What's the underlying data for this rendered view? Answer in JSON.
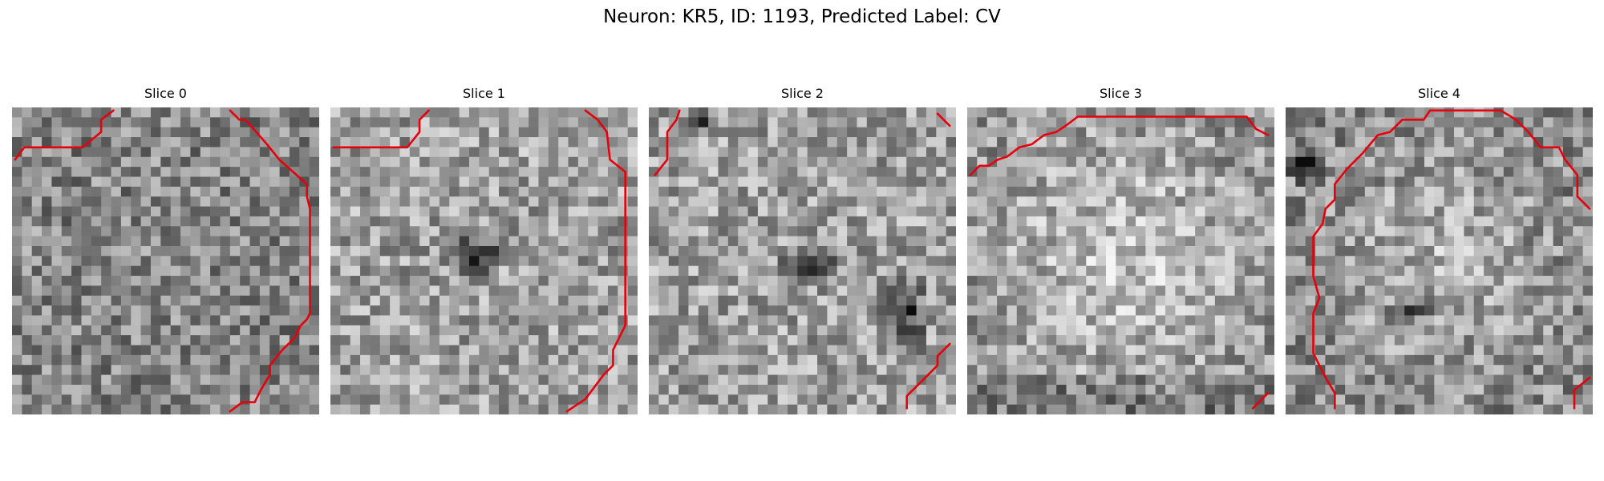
{
  "figure": {
    "title": "Neuron: KR5, ID: 1193, Predicted Label: CV",
    "contour_color": "#e8000b"
  },
  "slices": [
    {
      "title": "Slice 0",
      "dark_blobs": [],
      "contours": [
        [
          [
            0.01,
            0.17
          ],
          [
            0.04,
            0.13
          ],
          [
            0.23,
            0.13
          ],
          [
            0.29,
            0.08
          ],
          [
            0.29,
            0.04
          ],
          [
            0.33,
            0.01
          ]
        ],
        [
          [
            0.71,
            0.01
          ],
          [
            0.74,
            0.04
          ],
          [
            0.76,
            0.04
          ],
          [
            0.83,
            0.12
          ],
          [
            0.87,
            0.17
          ],
          [
            0.96,
            0.25
          ],
          [
            0.96,
            0.29
          ],
          [
            0.97,
            0.33
          ],
          [
            0.97,
            0.67
          ],
          [
            0.96,
            0.69
          ],
          [
            0.94,
            0.71
          ],
          [
            0.92,
            0.75
          ],
          [
            0.88,
            0.79
          ],
          [
            0.84,
            0.84
          ],
          [
            0.84,
            0.87
          ],
          [
            0.81,
            0.92
          ],
          [
            0.79,
            0.96
          ],
          [
            0.75,
            0.96
          ],
          [
            0.71,
            0.99
          ]
        ]
      ]
    },
    {
      "title": "Slice 1",
      "dark_blobs": [
        [
          0.47,
          0.48,
          0.09,
          0.07
        ]
      ],
      "contours": [
        [
          [
            0.01,
            0.13
          ],
          [
            0.25,
            0.13
          ],
          [
            0.29,
            0.08
          ],
          [
            0.29,
            0.04
          ],
          [
            0.32,
            0.01
          ]
        ],
        [
          [
            0.83,
            0.01
          ],
          [
            0.87,
            0.04
          ],
          [
            0.9,
            0.08
          ],
          [
            0.91,
            0.17
          ],
          [
            0.96,
            0.21
          ],
          [
            0.96,
            0.71
          ],
          [
            0.94,
            0.75
          ],
          [
            0.92,
            0.79
          ],
          [
            0.92,
            0.84
          ],
          [
            0.89,
            0.87
          ],
          [
            0.86,
            0.91
          ],
          [
            0.83,
            0.95
          ],
          [
            0.77,
            0.99
          ]
        ]
      ]
    },
    {
      "title": "Slice 2",
      "dark_blobs": [
        [
          0.52,
          0.52,
          0.09,
          0.05
        ],
        [
          0.83,
          0.68,
          0.07,
          0.12
        ],
        [
          0.15,
          0.05,
          0.05,
          0.05
        ]
      ],
      "contours": [
        [
          [
            0.02,
            0.22
          ],
          [
            0.06,
            0.17
          ],
          [
            0.06,
            0.08
          ],
          [
            0.09,
            0.04
          ],
          [
            0.1,
            0.01
          ]
        ],
        [
          [
            0.94,
            0.02
          ],
          [
            0.98,
            0.06
          ]
        ],
        [
          [
            0.84,
            0.98
          ],
          [
            0.84,
            0.94
          ],
          [
            0.89,
            0.89
          ],
          [
            0.94,
            0.84
          ],
          [
            0.94,
            0.81
          ],
          [
            0.98,
            0.77
          ]
        ]
      ]
    },
    {
      "title": "Slice 3",
      "dark_blobs": [],
      "contours": [
        [
          [
            0.01,
            0.22
          ],
          [
            0.04,
            0.19
          ],
          [
            0.07,
            0.19
          ],
          [
            0.1,
            0.17
          ],
          [
            0.13,
            0.16
          ],
          [
            0.17,
            0.13
          ],
          [
            0.21,
            0.12
          ],
          [
            0.25,
            0.09
          ],
          [
            0.29,
            0.08
          ],
          [
            0.32,
            0.06
          ],
          [
            0.36,
            0.03
          ],
          [
            0.91,
            0.03
          ],
          [
            0.94,
            0.07
          ],
          [
            0.98,
            0.09
          ]
        ],
        [
          [
            0.93,
            0.98
          ],
          [
            0.98,
            0.93
          ]
        ]
      ]
    },
    {
      "title": "Slice 4",
      "dark_blobs": [
        [
          0.06,
          0.18,
          0.05,
          0.06
        ],
        [
          0.42,
          0.66,
          0.08,
          0.04
        ]
      ],
      "contours": [
        [
          [
            0.16,
            0.98
          ],
          [
            0.16,
            0.93
          ],
          [
            0.13,
            0.88
          ],
          [
            0.11,
            0.84
          ],
          [
            0.09,
            0.8
          ],
          [
            0.09,
            0.67
          ],
          [
            0.11,
            0.62
          ],
          [
            0.09,
            0.55
          ],
          [
            0.09,
            0.42
          ],
          [
            0.12,
            0.38
          ],
          [
            0.13,
            0.33
          ],
          [
            0.16,
            0.3
          ],
          [
            0.16,
            0.25
          ],
          [
            0.2,
            0.2
          ],
          [
            0.25,
            0.15
          ],
          [
            0.3,
            0.09
          ],
          [
            0.34,
            0.08
          ],
          [
            0.38,
            0.04
          ],
          [
            0.45,
            0.04
          ],
          [
            0.47,
            0.01
          ],
          [
            0.7,
            0.01
          ],
          [
            0.75,
            0.04
          ],
          [
            0.79,
            0.08
          ],
          [
            0.83,
            0.13
          ],
          [
            0.89,
            0.13
          ],
          [
            0.91,
            0.17
          ],
          [
            0.95,
            0.22
          ],
          [
            0.95,
            0.29
          ],
          [
            0.99,
            0.33
          ]
        ],
        [
          [
            0.94,
            0.98
          ],
          [
            0.94,
            0.92
          ],
          [
            0.99,
            0.88
          ]
        ]
      ]
    }
  ]
}
